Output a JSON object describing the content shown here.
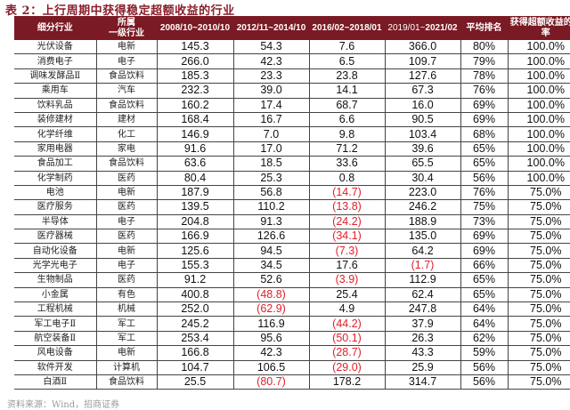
{
  "title": "表 2：上行周期中获得稳定超额收益的行业",
  "table": {
    "headers": {
      "sub_industry": "细分行业",
      "parent_industry_line1": "所属",
      "parent_industry_line2": "一级行业",
      "p1": "2008/10~2010/10",
      "p2": "2012/11~2014/10",
      "p3": "2016/02~2018/01",
      "p4_a": "2019/01~",
      "p4_b": "2021/02",
      "avg_rank": "平均排名",
      "prob": "获得超额收益的概率"
    },
    "rows": [
      {
        "name": "光伏设备",
        "parent": "电新",
        "p1": "145.3",
        "p2": "54.3",
        "p3": "7.6",
        "p4": "366.0",
        "rank": "80%",
        "prob": "100.0%"
      },
      {
        "name": "消费电子",
        "parent": "电子",
        "p1": "266.0",
        "p2": "42.3",
        "p3": "6.5",
        "p4": "109.7",
        "rank": "79%",
        "prob": "100.0%"
      },
      {
        "name": "调味发酵品Ⅱ",
        "parent": "食品饮料",
        "p1": "185.3",
        "p2": "23.3",
        "p3": "23.8",
        "p4": "127.6",
        "rank": "78%",
        "prob": "100.0%"
      },
      {
        "name": "乘用车",
        "parent": "汽车",
        "p1": "232.3",
        "p2": "39.0",
        "p3": "14.1",
        "p4": "67.3",
        "rank": "76%",
        "prob": "100.0%"
      },
      {
        "name": "饮料乳品",
        "parent": "食品饮料",
        "p1": "160.2",
        "p2": "17.4",
        "p3": "68.7",
        "p4": "16.0",
        "rank": "69%",
        "prob": "100.0%"
      },
      {
        "name": "装修建材",
        "parent": "建材",
        "p1": "168.4",
        "p2": "16.7",
        "p3": "6.6",
        "p4": "90.5",
        "rank": "69%",
        "prob": "100.0%"
      },
      {
        "name": "化学纤维",
        "parent": "化工",
        "p1": "146.9",
        "p2": "7.0",
        "p3": "9.8",
        "p4": "103.4",
        "rank": "68%",
        "prob": "100.0%"
      },
      {
        "name": "家用电器",
        "parent": "家电",
        "p1": "91.6",
        "p2": "17.0",
        "p3": "71.2",
        "p4": "39.6",
        "rank": "65%",
        "prob": "100.0%"
      },
      {
        "name": "食品加工",
        "parent": "食品饮料",
        "p1": "63.6",
        "p2": "18.5",
        "p3": "33.6",
        "p4": "65.5",
        "rank": "65%",
        "prob": "100.0%"
      },
      {
        "name": "化学制药",
        "parent": "医药",
        "p1": "80.4",
        "p2": "25.3",
        "p3": "0.8",
        "p4": "30.4",
        "rank": "56%",
        "prob": "100.0%"
      },
      {
        "name": "电池",
        "parent": "电新",
        "p1": "187.9",
        "p2": "56.8",
        "p3": "(14.7)",
        "p4": "223.0",
        "rank": "76%",
        "prob": "75.0%"
      },
      {
        "name": "医疗服务",
        "parent": "医药",
        "p1": "139.5",
        "p2": "110.2",
        "p3": "(13.8)",
        "p4": "246.2",
        "rank": "75%",
        "prob": "75.0%"
      },
      {
        "name": "半导体",
        "parent": "电子",
        "p1": "204.8",
        "p2": "91.3",
        "p3": "(24.2)",
        "p4": "188.9",
        "rank": "73%",
        "prob": "75.0%"
      },
      {
        "name": "医疗器械",
        "parent": "医药",
        "p1": "166.9",
        "p2": "126.6",
        "p3": "(34.1)",
        "p4": "135.0",
        "rank": "69%",
        "prob": "75.0%"
      },
      {
        "name": "自动化设备",
        "parent": "电新",
        "p1": "125.6",
        "p2": "94.5",
        "p3": "(7.3)",
        "p4": "64.2",
        "rank": "69%",
        "prob": "75.0%"
      },
      {
        "name": "光学光电子",
        "parent": "电子",
        "p1": "155.3",
        "p2": "34.5",
        "p3": "17.6",
        "p4": "(1.7)",
        "rank": "66%",
        "prob": "75.0%"
      },
      {
        "name": "生物制品",
        "parent": "医药",
        "p1": "91.2",
        "p2": "52.6",
        "p3": "(3.9)",
        "p4": "112.9",
        "rank": "65%",
        "prob": "75.0%"
      },
      {
        "name": "小金属",
        "parent": "有色",
        "p1": "400.8",
        "p2": "(48.8)",
        "p3": "25.4",
        "p4": "62.4",
        "rank": "65%",
        "prob": "75.0%"
      },
      {
        "name": "工程机械",
        "parent": "机械",
        "p1": "252.0",
        "p2": "(62.9)",
        "p3": "4.9",
        "p4": "247.8",
        "rank": "64%",
        "prob": "75.0%"
      },
      {
        "name": "军工电子Ⅱ",
        "parent": "军工",
        "p1": "245.2",
        "p2": "116.9",
        "p3": "(44.2)",
        "p4": "37.9",
        "rank": "64%",
        "prob": "75.0%"
      },
      {
        "name": "航空装备Ⅱ",
        "parent": "军工",
        "p1": "253.4",
        "p2": "95.6",
        "p3": "(50.1)",
        "p4": "26.3",
        "rank": "62%",
        "prob": "75.0%"
      },
      {
        "name": "风电设备",
        "parent": "电新",
        "p1": "166.8",
        "p2": "42.3",
        "p3": "(28.7)",
        "p4": "43.3",
        "rank": "59%",
        "prob": "75.0%"
      },
      {
        "name": "软件开发",
        "parent": "计算机",
        "p1": "104.7",
        "p2": "106.5",
        "p3": "(29.0)",
        "p4": "25.9",
        "rank": "56%",
        "prob": "75.0%"
      },
      {
        "name": "白酒Ⅱ",
        "parent": "食品饮料",
        "p1": "25.5",
        "p2": "(80.7)",
        "p3": "178.2",
        "p4": "314.7",
        "rank": "56%",
        "prob": "75.0%"
      }
    ]
  },
  "footer": "资料来源：Wind，招商证券",
  "colors": {
    "header_bg": "#7a1a24",
    "title": "#8a1e2a",
    "negative": "#e0202a"
  }
}
